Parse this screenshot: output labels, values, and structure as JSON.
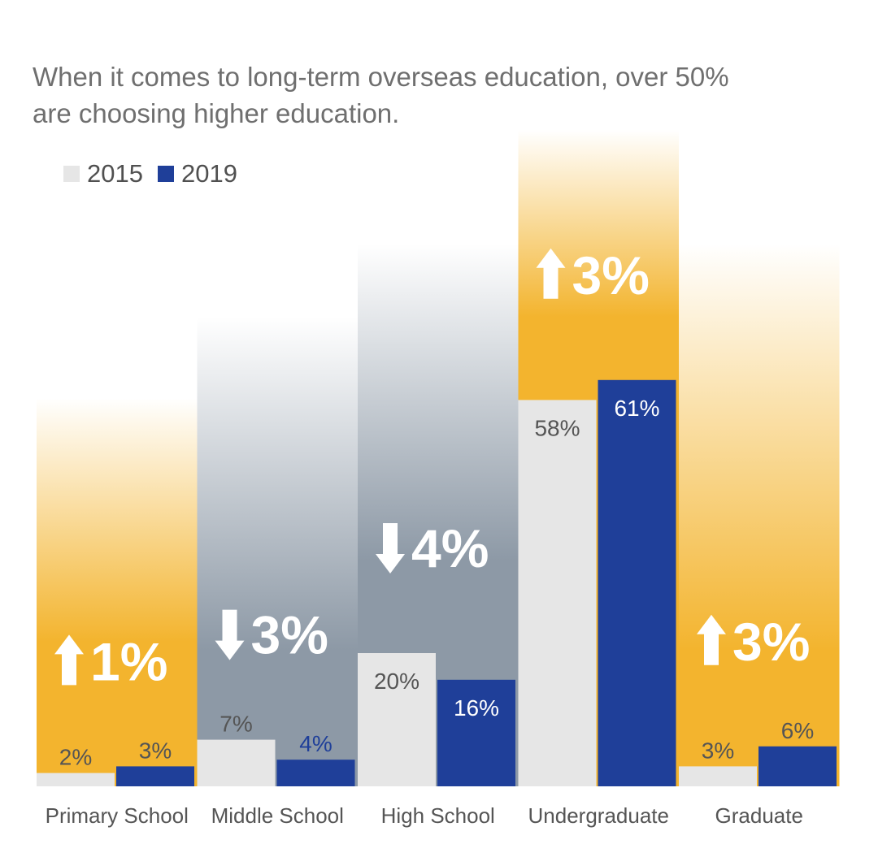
{
  "title": "When it comes to long-term overseas education, over 50% are choosing higher education.",
  "legend": [
    {
      "label": "2015",
      "color": "#e6e6e6"
    },
    {
      "label": "2019",
      "color": "#1f3f99"
    }
  ],
  "colors": {
    "up_fill": "#f3b42e",
    "down_fill": "#8d99a6",
    "label_dark": "#555555",
    "label_light": "#ffffff",
    "label_blue": "#1f3f99"
  },
  "chart_data": {
    "type": "bar",
    "title": "When it comes to long-term overseas education, over 50% are choosing higher education.",
    "xlabel": "",
    "ylabel": "",
    "ylim": [
      0,
      80
    ],
    "categories": [
      "Primary School",
      "Middle School",
      "High School",
      "Undergraduate",
      "Graduate"
    ],
    "series": [
      {
        "name": "2015",
        "values": [
          2,
          7,
          20,
          58,
          3
        ],
        "labels": [
          "2%",
          "7%",
          "20%",
          "58%",
          "3%"
        ]
      },
      {
        "name": "2019",
        "values": [
          3,
          4,
          16,
          61,
          6
        ],
        "labels": [
          "3%",
          "4%",
          "16%",
          "61%",
          "6%"
        ]
      }
    ],
    "changes": [
      {
        "direction": "up",
        "text": "1%"
      },
      {
        "direction": "down",
        "text": "3%"
      },
      {
        "direction": "down",
        "text": "4%"
      },
      {
        "direction": "up",
        "text": "3%"
      },
      {
        "direction": "up",
        "text": "3%"
      }
    ]
  }
}
